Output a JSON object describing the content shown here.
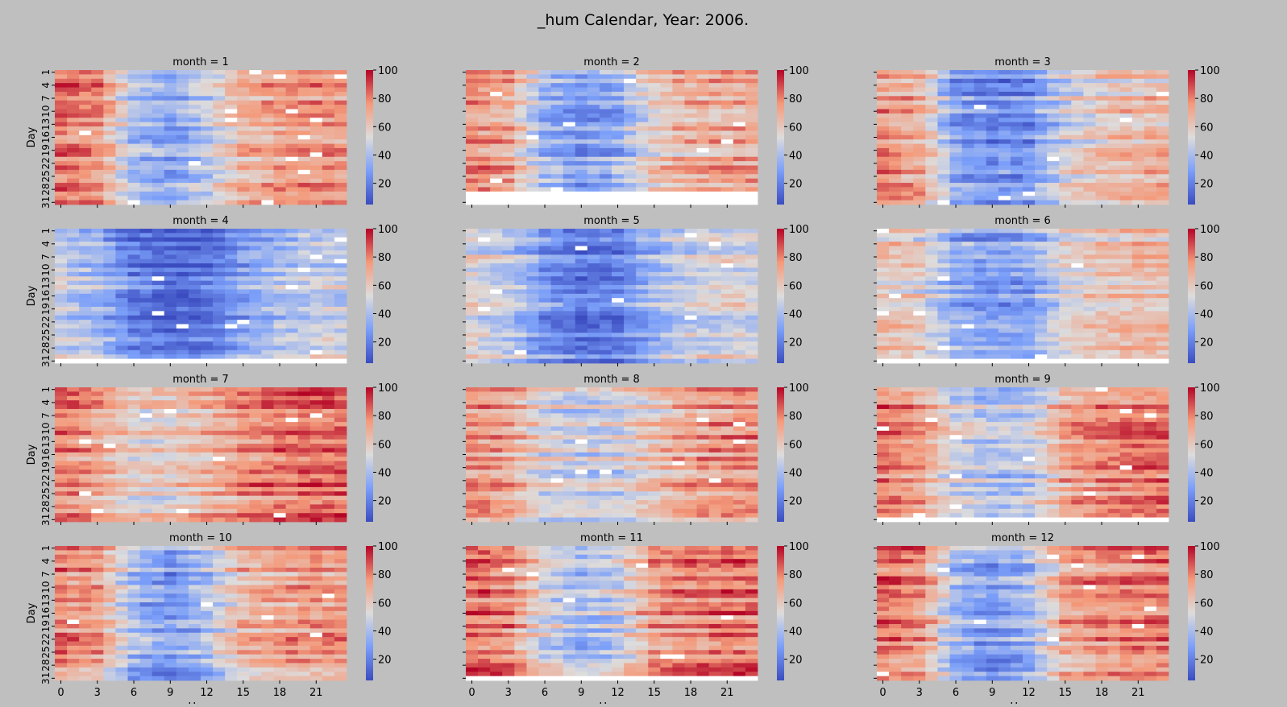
{
  "chart_data": {
    "type": "heatmap",
    "title": "_hum Calendar, Year: 2006.",
    "xlabel": "Hour",
    "ylabel": "Day",
    "x_ticks": [
      "0",
      "3",
      "6",
      "9",
      "12",
      "15",
      "18",
      "21"
    ],
    "y_ticks": [
      "1",
      "4",
      "7",
      "10",
      "13",
      "16",
      "19",
      "22",
      "25",
      "28",
      "31"
    ],
    "colorbar_ticks": [
      "20",
      "40",
      "60",
      "80",
      "100"
    ],
    "colorbar_range": [
      5,
      100
    ],
    "colormap": "coolwarm",
    "panels": [
      {
        "title": "month = 1",
        "days": 31,
        "hour_means": [
          80,
          75,
          40,
          30,
          45,
          65,
          72,
          74
        ]
      },
      {
        "title": "month = 2",
        "days": 28,
        "hour_means": [
          78,
          70,
          38,
          28,
          35,
          60,
          68,
          70
        ]
      },
      {
        "title": "month = 3",
        "days": 31,
        "hour_means": [
          74,
          68,
          30,
          22,
          25,
          48,
          60,
          64
        ]
      },
      {
        "title": "month = 4",
        "days": 30,
        "hour_means": [
          48,
          40,
          22,
          15,
          18,
          33,
          42,
          48
        ]
      },
      {
        "title": "month = 5",
        "days": 31,
        "hour_means": [
          55,
          45,
          28,
          18,
          22,
          38,
          48,
          52
        ]
      },
      {
        "title": "month = 6",
        "days": 30,
        "hour_means": [
          62,
          55,
          35,
          28,
          32,
          52,
          60,
          64
        ]
      },
      {
        "title": "month = 7",
        "days": 31,
        "hour_means": [
          80,
          72,
          56,
          58,
          66,
          76,
          82,
          84
        ]
      },
      {
        "title": "month = 8",
        "days": 31,
        "hour_means": [
          78,
          70,
          52,
          48,
          50,
          62,
          72,
          76
        ]
      },
      {
        "title": "month = 9",
        "days": 30,
        "hour_means": [
          82,
          72,
          50,
          42,
          45,
          70,
          78,
          82
        ]
      },
      {
        "title": "month = 10",
        "days": 31,
        "hour_means": [
          78,
          72,
          38,
          28,
          40,
          66,
          72,
          74
        ]
      },
      {
        "title": "month = 11",
        "days": 30,
        "hour_means": [
          84,
          78,
          52,
          40,
          48,
          74,
          80,
          82
        ]
      },
      {
        "title": "month = 12",
        "days": 31,
        "hour_means": [
          84,
          78,
          40,
          30,
          40,
          72,
          78,
          82
        ]
      }
    ]
  }
}
